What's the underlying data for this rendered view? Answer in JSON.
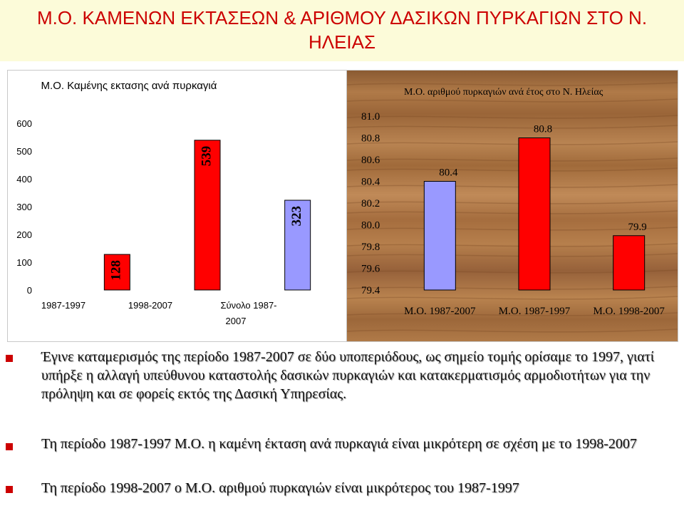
{
  "slide": {
    "title": "Μ.Ο. ΚΑΜΕΝΩΝ ΕΚΤΑΣΕΩΝ & ΑΡΙΘΜΟΥ ΔΑΣΙΚΩΝ ΠΥΡΚΑΓΙΩΝ ΣΤΟ Ν. ΗΛΕΙΑΣ",
    "bullets": [
      "Έγινε καταμερισμός της περίοδο 1987-2007 σε δύο υποπεριόδους, ως σημείο τομής ορίσαμε το 1997, γιατί υπήρξε η αλλαγή υπεύθυνου καταστολής δασικών πυρκαγιών και κατακερματισμός αρμοδιοτήτων για την πρόληψη  και σε φορείς εκτός της Δασική Υπηρεσίας.",
      "Τη περίοδο 1987-1997 Μ.Ο. η καμένη έκταση ανά πυρκαγιά είναι μικρότερη σε σχέση με το 1998-2007",
      "Τη περίοδο 1998-2007 ο Μ.Ο. αριθμού πυρκαγιών είναι μικρότερος του 1987-1997"
    ]
  },
  "colors": {
    "title": "#cc0000",
    "title_band": "#fcfbd9",
    "bullet": "#cc0000",
    "bar_red": "#ff0000",
    "bar_blue": "#9999ff",
    "bar_outline": "#000000",
    "wood_base": "#a06a3a"
  },
  "chart_data": [
    {
      "type": "bar",
      "title": "Μ.Ο. Καμένης εκτασης ανά πυρκαγιά",
      "categories": [
        "1987-1997",
        "1998-2007",
        "Σύνολο 1987-2007"
      ],
      "values": [
        128,
        539,
        323
      ],
      "value_labels": [
        "128",
        "539",
        "323"
      ],
      "bar_colors": [
        "#ff0000",
        "#ff0000",
        "#9999ff"
      ],
      "ylim": [
        0,
        600
      ],
      "yticks": [
        "0",
        "100",
        "200",
        "300",
        "400",
        "500",
        "600"
      ],
      "grid": false,
      "legend": "none"
    },
    {
      "type": "bar",
      "title": "Μ.Ο. αριθμού πυρκαγιών ανά έτος στο Ν. Ηλείας",
      "categories": [
        "Μ.Ο. 1987-2007",
        "Μ.Ο. 1987-1997",
        "Μ.Ο. 1998-2007"
      ],
      "values": [
        80.4,
        80.8,
        79.9
      ],
      "value_labels": [
        "80.4",
        "80.8",
        "79.9"
      ],
      "bar_colors": [
        "#9999ff",
        "#ff0000",
        "#ff0000"
      ],
      "ylim": [
        79.4,
        81.0
      ],
      "yticks": [
        "79.4",
        "79.6",
        "79.8",
        "80.0",
        "80.2",
        "80.4",
        "80.6",
        "80.8",
        "81.0"
      ],
      "grid": false,
      "legend": "none",
      "plot_background": "wood texture"
    }
  ]
}
